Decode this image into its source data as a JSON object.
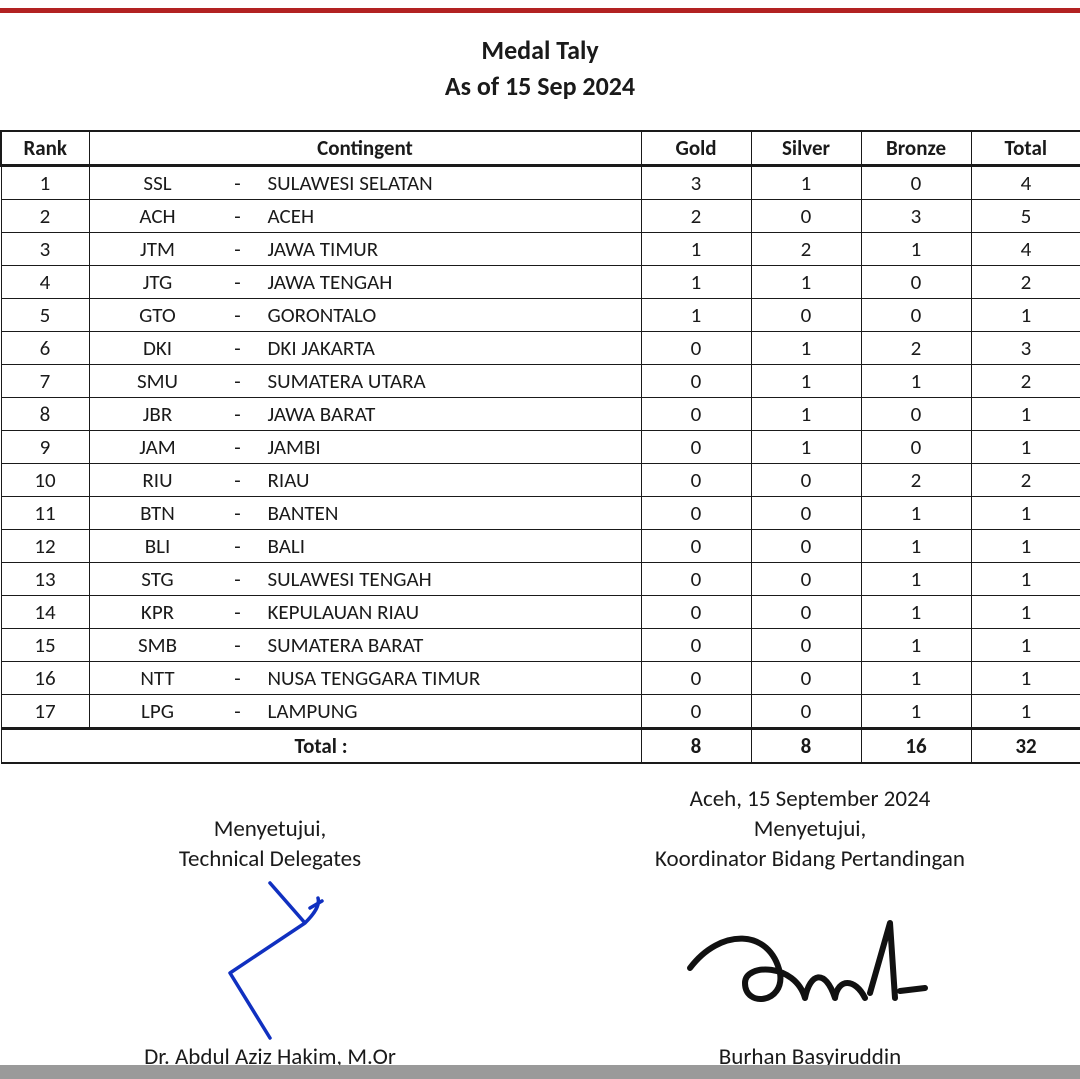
{
  "header": {
    "title": "Medal Taly",
    "subtitle": "As of 15 Sep 2024"
  },
  "table": {
    "columns": {
      "rank": "Rank",
      "contingent": "Contingent",
      "gold": "Gold",
      "silver": "Silver",
      "bronze": "Bronze",
      "total": "Total"
    },
    "rows": [
      {
        "rank": 1,
        "code": "SSL",
        "name": "SULAWESI SELATAN",
        "gold": 3,
        "silver": 1,
        "bronze": 0,
        "total": 4
      },
      {
        "rank": 2,
        "code": "ACH",
        "name": "ACEH",
        "gold": 2,
        "silver": 0,
        "bronze": 3,
        "total": 5
      },
      {
        "rank": 3,
        "code": "JTM",
        "name": "JAWA TIMUR",
        "gold": 1,
        "silver": 2,
        "bronze": 1,
        "total": 4
      },
      {
        "rank": 4,
        "code": "JTG",
        "name": "JAWA TENGAH",
        "gold": 1,
        "silver": 1,
        "bronze": 0,
        "total": 2
      },
      {
        "rank": 5,
        "code": "GTO",
        "name": "GORONTALO",
        "gold": 1,
        "silver": 0,
        "bronze": 0,
        "total": 1
      },
      {
        "rank": 6,
        "code": "DKI",
        "name": "DKI JAKARTA",
        "gold": 0,
        "silver": 1,
        "bronze": 2,
        "total": 3
      },
      {
        "rank": 7,
        "code": "SMU",
        "name": "SUMATERA UTARA",
        "gold": 0,
        "silver": 1,
        "bronze": 1,
        "total": 2
      },
      {
        "rank": 8,
        "code": "JBR",
        "name": "JAWA BARAT",
        "gold": 0,
        "silver": 1,
        "bronze": 0,
        "total": 1
      },
      {
        "rank": 9,
        "code": "JAM",
        "name": "JAMBI",
        "gold": 0,
        "silver": 1,
        "bronze": 0,
        "total": 1
      },
      {
        "rank": 10,
        "code": "RIU",
        "name": "RIAU",
        "gold": 0,
        "silver": 0,
        "bronze": 2,
        "total": 2
      },
      {
        "rank": 11,
        "code": "BTN",
        "name": "BANTEN",
        "gold": 0,
        "silver": 0,
        "bronze": 1,
        "total": 1
      },
      {
        "rank": 12,
        "code": "BLI",
        "name": "BALI",
        "gold": 0,
        "silver": 0,
        "bronze": 1,
        "total": 1
      },
      {
        "rank": 13,
        "code": "STG",
        "name": "SULAWESI TENGAH",
        "gold": 0,
        "silver": 0,
        "bronze": 1,
        "total": 1
      },
      {
        "rank": 14,
        "code": "KPR",
        "name": "KEPULAUAN RIAU",
        "gold": 0,
        "silver": 0,
        "bronze": 1,
        "total": 1
      },
      {
        "rank": 15,
        "code": "SMB",
        "name": "SUMATERA BARAT",
        "gold": 0,
        "silver": 0,
        "bronze": 1,
        "total": 1
      },
      {
        "rank": 16,
        "code": "NTT",
        "name": "NUSA TENGGARA TIMUR",
        "gold": 0,
        "silver": 0,
        "bronze": 1,
        "total": 1
      },
      {
        "rank": 17,
        "code": "LPG",
        "name": "LAMPUNG",
        "gold": 0,
        "silver": 0,
        "bronze": 1,
        "total": 1
      }
    ],
    "totals": {
      "label": "Total :",
      "gold": 8,
      "silver": 8,
      "bronze": 16,
      "total": 32
    }
  },
  "signatures": {
    "left": {
      "place_date": "",
      "approve": "Menyetujui,",
      "role": "Technical Delegates",
      "name": "Dr. Abdul Aziz Hakim, M.Or"
    },
    "right": {
      "place_date": "Aceh, 15 September 2024",
      "approve": "Menyetujui,",
      "role": "Koordinator Bidang Pertandingan",
      "name": "Burhan Basyiruddin"
    }
  },
  "style": {
    "accent_color": "#b22222",
    "border_color": "#1a1a1a",
    "sig_left_color": "#1030c0",
    "sig_right_color": "#111111"
  }
}
